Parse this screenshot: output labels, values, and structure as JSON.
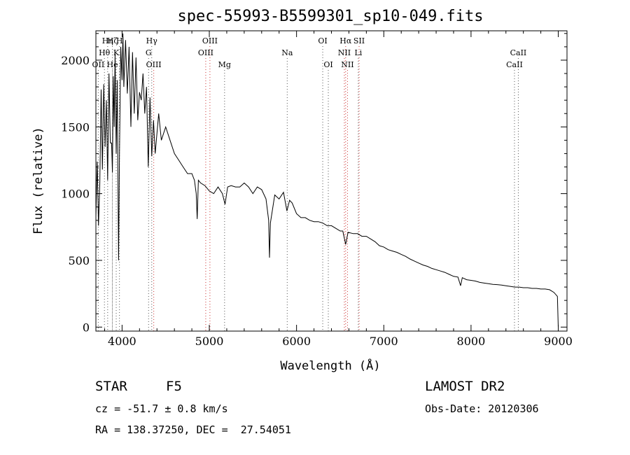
{
  "chart_data": {
    "type": "line",
    "title": "spec-55993-B5599301_sp10-049.fits",
    "xlabel": "Wavelength (Å)",
    "ylabel": "Flux (relative)",
    "xlim": [
      3700,
      9100
    ],
    "ylim": [
      -30,
      2220
    ],
    "x_ticks": [
      4000,
      5000,
      6000,
      7000,
      8000,
      9000
    ],
    "y_ticks": [
      0,
      500,
      1000,
      1500,
      2000
    ],
    "grid": false,
    "series": [
      {
        "points": [
          [
            3700,
            830
          ],
          [
            3715,
            1240
          ],
          [
            3730,
            760
          ],
          [
            3745,
            1080
          ],
          [
            3760,
            1780
          ],
          [
            3775,
            1180
          ],
          [
            3790,
            1820
          ],
          [
            3805,
            1350
          ],
          [
            3820,
            1700
          ],
          [
            3835,
            1100
          ],
          [
            3850,
            1900
          ],
          [
            3865,
            1380
          ],
          [
            3880,
            1380
          ],
          [
            3889,
            1160
          ],
          [
            3900,
            1880
          ],
          [
            3910,
            1500
          ],
          [
            3920,
            2050
          ],
          [
            3933,
            1300
          ],
          [
            3945,
            1850
          ],
          [
            3960,
            500
          ],
          [
            3970,
            1300
          ],
          [
            3985,
            2100
          ],
          [
            4000,
            1850
          ],
          [
            4010,
            2200
          ],
          [
            4020,
            1800
          ],
          [
            4040,
            2150
          ],
          [
            4060,
            1750
          ],
          [
            4080,
            2100
          ],
          [
            4101,
            1500
          ],
          [
            4120,
            2060
          ],
          [
            4140,
            1600
          ],
          [
            4160,
            2020
          ],
          [
            4180,
            1550
          ],
          [
            4200,
            1760
          ],
          [
            4220,
            1700
          ],
          [
            4240,
            1900
          ],
          [
            4260,
            1600
          ],
          [
            4280,
            1800
          ],
          [
            4300,
            1200
          ],
          [
            4320,
            1720
          ],
          [
            4340,
            1280
          ],
          [
            4360,
            1550
          ],
          [
            4380,
            1300
          ],
          [
            4400,
            1450
          ],
          [
            4420,
            1600
          ],
          [
            4450,
            1400
          ],
          [
            4500,
            1500
          ],
          [
            4550,
            1400
          ],
          [
            4600,
            1300
          ],
          [
            4650,
            1250
          ],
          [
            4700,
            1200
          ],
          [
            4750,
            1150
          ],
          [
            4800,
            1150
          ],
          [
            4830,
            1100
          ],
          [
            4850,
            1000
          ],
          [
            4861,
            810
          ],
          [
            4875,
            1100
          ],
          [
            4900,
            1080
          ],
          [
            4950,
            1060
          ],
          [
            5000,
            1020
          ],
          [
            5050,
            1000
          ],
          [
            5100,
            1050
          ],
          [
            5150,
            1000
          ],
          [
            5180,
            920
          ],
          [
            5210,
            1050
          ],
          [
            5250,
            1060
          ],
          [
            5300,
            1050
          ],
          [
            5350,
            1050
          ],
          [
            5400,
            1080
          ],
          [
            5450,
            1050
          ],
          [
            5500,
            1000
          ],
          [
            5550,
            1050
          ],
          [
            5600,
            1030
          ],
          [
            5650,
            960
          ],
          [
            5680,
            800
          ],
          [
            5690,
            520
          ],
          [
            5700,
            780
          ],
          [
            5750,
            990
          ],
          [
            5800,
            960
          ],
          [
            5850,
            1010
          ],
          [
            5890,
            870
          ],
          [
            5920,
            950
          ],
          [
            5950,
            930
          ],
          [
            6000,
            850
          ],
          [
            6050,
            820
          ],
          [
            6100,
            820
          ],
          [
            6150,
            800
          ],
          [
            6200,
            790
          ],
          [
            6250,
            790
          ],
          [
            6300,
            780
          ],
          [
            6350,
            760
          ],
          [
            6400,
            760
          ],
          [
            6450,
            740
          ],
          [
            6500,
            720
          ],
          [
            6530,
            720
          ],
          [
            6563,
            620
          ],
          [
            6590,
            710
          ],
          [
            6650,
            700
          ],
          [
            6700,
            700
          ],
          [
            6750,
            680
          ],
          [
            6800,
            680
          ],
          [
            6850,
            660
          ],
          [
            6900,
            640
          ],
          [
            6950,
            610
          ],
          [
            7000,
            600
          ],
          [
            7050,
            580
          ],
          [
            7100,
            570
          ],
          [
            7150,
            560
          ],
          [
            7200,
            545
          ],
          [
            7250,
            530
          ],
          [
            7300,
            510
          ],
          [
            7350,
            495
          ],
          [
            7400,
            480
          ],
          [
            7450,
            465
          ],
          [
            7500,
            455
          ],
          [
            7550,
            440
          ],
          [
            7600,
            430
          ],
          [
            7650,
            420
          ],
          [
            7700,
            410
          ],
          [
            7750,
            395
          ],
          [
            7800,
            380
          ],
          [
            7850,
            375
          ],
          [
            7880,
            310
          ],
          [
            7900,
            370
          ],
          [
            7950,
            355
          ],
          [
            8000,
            350
          ],
          [
            8050,
            345
          ],
          [
            8100,
            335
          ],
          [
            8150,
            330
          ],
          [
            8200,
            325
          ],
          [
            8250,
            320
          ],
          [
            8300,
            318
          ],
          [
            8350,
            315
          ],
          [
            8400,
            310
          ],
          [
            8450,
            305
          ],
          [
            8500,
            300
          ],
          [
            8550,
            300
          ],
          [
            8600,
            295
          ],
          [
            8650,
            295
          ],
          [
            8700,
            290
          ],
          [
            8750,
            290
          ],
          [
            8800,
            285
          ],
          [
            8850,
            285
          ],
          [
            8900,
            280
          ],
          [
            8950,
            260
          ],
          [
            8990,
            230
          ],
          [
            9000,
            0
          ]
        ]
      }
    ],
    "line_markers": [
      {
        "label": "Hη",
        "wavelength": 3835,
        "row": 0
      },
      {
        "label": "Hζ",
        "wavelength": 3889,
        "row": 0
      },
      {
        "label": "H",
        "wavelength": 3970,
        "row": 0
      },
      {
        "label": "Hθ",
        "wavelength": 3798,
        "row": 1
      },
      {
        "label": "K",
        "wavelength": 3933,
        "row": 1
      },
      {
        "label": "OII",
        "wavelength": 3727,
        "row": 2
      },
      {
        "label": "He",
        "wavelength": 3889,
        "row": 2
      },
      {
        "label": "Hγ",
        "wavelength": 4340,
        "row": 0
      },
      {
        "label": "G",
        "wavelength": 4304,
        "row": 1
      },
      {
        "label": "OIII",
        "wavelength": 4363,
        "row": 2
      },
      {
        "label": "OIII",
        "wavelength": 5007,
        "row": 0
      },
      {
        "label": "OIII",
        "wavelength": 4959,
        "row": 1
      },
      {
        "label": "Mg",
        "wavelength": 5175,
        "row": 2
      },
      {
        "label": "Na",
        "wavelength": 5893,
        "row": 1
      },
      {
        "label": "OI",
        "wavelength": 6300,
        "row": 0
      },
      {
        "label": "OI",
        "wavelength": 6364,
        "row": 2
      },
      {
        "label": "Hα",
        "wavelength": 6563,
        "row": 0
      },
      {
        "label": "SII",
        "wavelength": 6717,
        "row": 0
      },
      {
        "label": "NII",
        "wavelength": 6548,
        "row": 1
      },
      {
        "label": "Li",
        "wavelength": 6708,
        "row": 1
      },
      {
        "label": "NII",
        "wavelength": 6584,
        "row": 2
      },
      {
        "label": "CaII",
        "wavelength": 8542,
        "row": 1
      },
      {
        "label": "CaII",
        "wavelength": 8498,
        "row": 2
      }
    ],
    "marker_colors": {
      "default": "#555555",
      "red": "#cc3333"
    },
    "red_marker_labels": [
      "OIII",
      "Hα",
      "SII",
      "NII"
    ]
  },
  "info": {
    "object_class": "STAR",
    "subclass": "F5",
    "survey": "LAMOST DR2",
    "redshift": "cz = -51.7 ± 0.8 km/s",
    "obs_date": "Obs-Date: 20120306",
    "coords": "RA = 138.37250, DEC =  27.54051"
  }
}
